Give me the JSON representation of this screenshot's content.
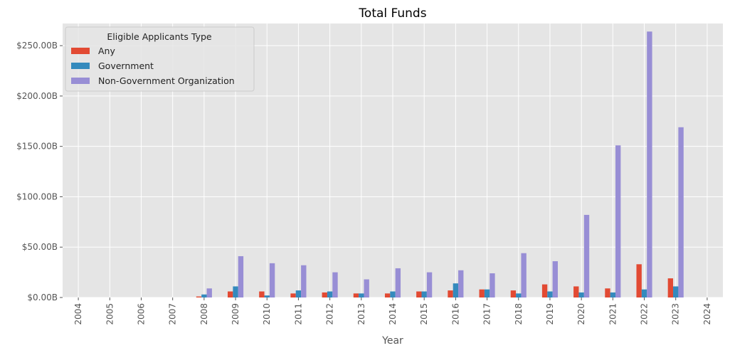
{
  "chart_data": {
    "type": "bar",
    "title": "Total Funds",
    "xlabel": "Year",
    "ylabel": "",
    "ylim": [
      0,
      272
    ],
    "yticks": [
      0,
      50,
      100,
      150,
      200,
      250
    ],
    "ytick_labels": [
      "$0.00B",
      "$50.00B",
      "$100.00B",
      "$150.00B",
      "$200.00B",
      "$250.00B"
    ],
    "grid": true,
    "legend": {
      "title": "Eligible Applicants Type",
      "placement": "top-left"
    },
    "categories": [
      "2004",
      "2005",
      "2006",
      "2007",
      "2008",
      "2009",
      "2010",
      "2011",
      "2012",
      "2013",
      "2014",
      "2015",
      "2016",
      "2017",
      "2018",
      "2019",
      "2020",
      "2021",
      "2022",
      "2023",
      "2024"
    ],
    "series": [
      {
        "name": "Any",
        "color": "#E24A33",
        "values": [
          0,
          0,
          0,
          0,
          1,
          6,
          6,
          4,
          5,
          4,
          4,
          6,
          7,
          8,
          7,
          13,
          11,
          9,
          33,
          19,
          0
        ]
      },
      {
        "name": "Government",
        "color": "#348ABD",
        "values": [
          0,
          0,
          0,
          0,
          3,
          11,
          2,
          7,
          6,
          4,
          6,
          6,
          14,
          8,
          4,
          6,
          5,
          5,
          8,
          11,
          0
        ]
      },
      {
        "name": "Non-Government Organization",
        "color": "#988ED5",
        "values": [
          0,
          0,
          0,
          0,
          9,
          41,
          34,
          32,
          25,
          18,
          29,
          25,
          27,
          24,
          44,
          36,
          82,
          151,
          264,
          169,
          0
        ]
      }
    ]
  }
}
